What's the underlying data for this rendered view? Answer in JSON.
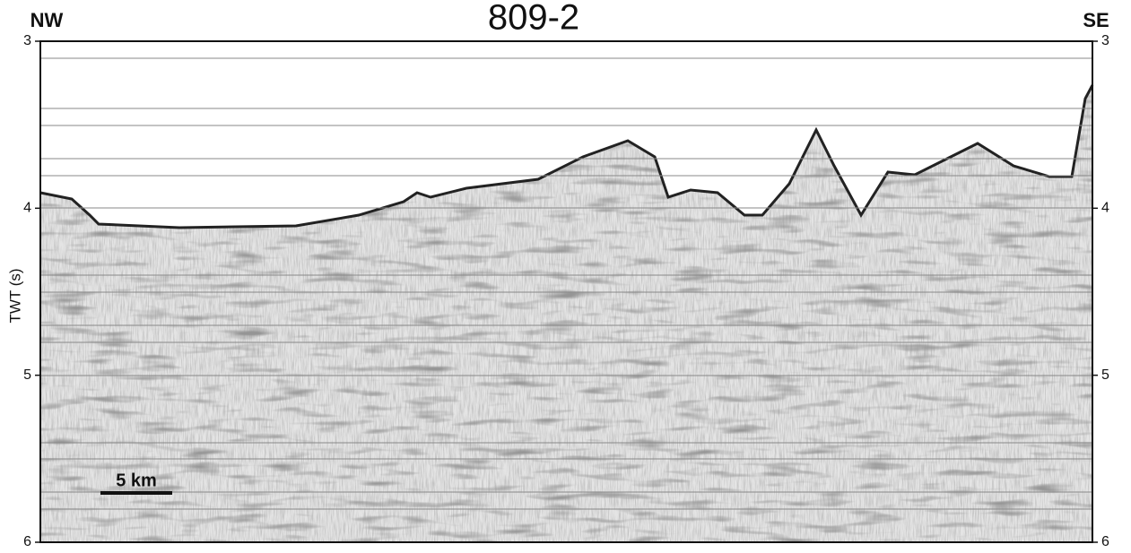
{
  "header": {
    "title": "809-2",
    "left_label": "NW",
    "right_label": "SE"
  },
  "axis": {
    "label": "TWT (s)",
    "range": [
      3,
      6
    ],
    "ticks": [
      3,
      4,
      5,
      6
    ]
  },
  "scale_bar": {
    "label": "5 km"
  }
}
